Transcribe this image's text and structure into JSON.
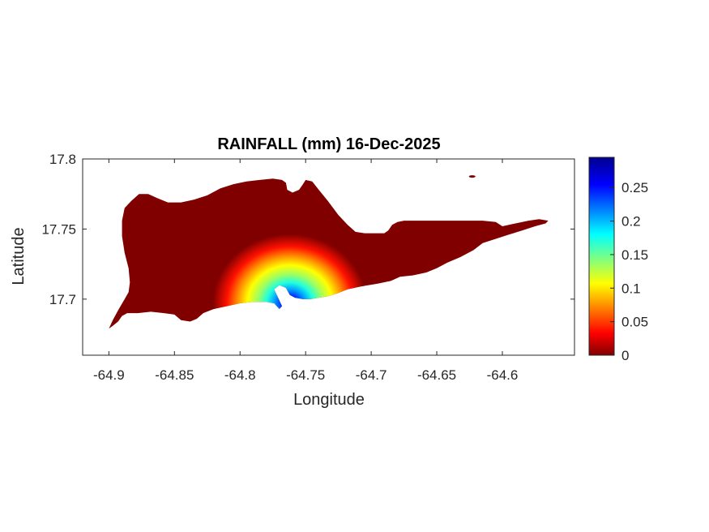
{
  "chart_data": {
    "type": "heatmap",
    "title": "RAINFALL (mm) 16-Dec-2025",
    "xlabel": "Longitude",
    "ylabel": "Latitude",
    "xlim": [
      -64.92,
      -64.545
    ],
    "ylim": [
      17.66,
      17.8
    ],
    "x_ticks": [
      -64.9,
      -64.85,
      -64.8,
      -64.75,
      -64.7,
      -64.65,
      -64.6
    ],
    "x_tick_labels": [
      "-64.9",
      "-64.85",
      "-64.8",
      "-64.75",
      "-64.7",
      "-64.65",
      "-64.6"
    ],
    "y_ticks": [
      17.7,
      17.75,
      17.8
    ],
    "y_tick_labels": [
      "17.7",
      "17.75",
      "17.8"
    ],
    "colormap": "jet",
    "colorbar": {
      "lim": [
        0,
        0.295
      ],
      "ticks": [
        0,
        0.05,
        0.1,
        0.15,
        0.2,
        0.25
      ],
      "tick_labels": [
        "0",
        "0.05",
        "0.1",
        "0.15",
        "0.2",
        "0.25"
      ]
    },
    "background_value": 0,
    "rain_max": {
      "lon": -64.762,
      "lat": 17.697,
      "value": 0.29
    },
    "land_outline": [
      [
        -64.9,
        17.679
      ],
      [
        -64.897,
        17.681
      ],
      [
        -64.893,
        17.684
      ],
      [
        -64.89,
        17.688
      ],
      [
        -64.886,
        17.69
      ],
      [
        -64.878,
        17.69
      ],
      [
        -64.868,
        17.691
      ],
      [
        -64.858,
        17.69
      ],
      [
        -64.85,
        17.689
      ],
      [
        -64.845,
        17.685
      ],
      [
        -64.838,
        17.684
      ],
      [
        -64.833,
        17.686
      ],
      [
        -64.828,
        17.69
      ],
      [
        -64.82,
        17.693
      ],
      [
        -64.81,
        17.695
      ],
      [
        -64.8,
        17.697
      ],
      [
        -64.79,
        17.698
      ],
      [
        -64.78,
        17.698
      ],
      [
        -64.774,
        17.697
      ],
      [
        -64.77,
        17.693
      ],
      [
        -64.768,
        17.695
      ],
      [
        -64.771,
        17.701
      ],
      [
        -64.774,
        17.707
      ],
      [
        -64.77,
        17.71
      ],
      [
        -64.765,
        17.708
      ],
      [
        -64.762,
        17.703
      ],
      [
        -64.758,
        17.701
      ],
      [
        -64.752,
        17.7
      ],
      [
        -64.746,
        17.7
      ],
      [
        -64.74,
        17.701
      ],
      [
        -64.733,
        17.702
      ],
      [
        -64.726,
        17.704
      ],
      [
        -64.718,
        17.707
      ],
      [
        -64.708,
        17.709
      ],
      [
        -64.695,
        17.711
      ],
      [
        -64.685,
        17.713
      ],
      [
        -64.678,
        17.716
      ],
      [
        -64.668,
        17.717
      ],
      [
        -64.658,
        17.719
      ],
      [
        -64.65,
        17.722
      ],
      [
        -64.642,
        17.726
      ],
      [
        -64.632,
        17.73
      ],
      [
        -64.622,
        17.735
      ],
      [
        -64.615,
        17.74
      ],
      [
        -64.605,
        17.743
      ],
      [
        -64.595,
        17.746
      ],
      [
        -64.585,
        17.749
      ],
      [
        -64.575,
        17.752
      ],
      [
        -64.567,
        17.754
      ],
      [
        -64.565,
        17.756
      ],
      [
        -64.572,
        17.757
      ],
      [
        -64.58,
        17.756
      ],
      [
        -64.59,
        17.754
      ],
      [
        -64.6,
        17.752
      ],
      [
        -64.605,
        17.755
      ],
      [
        -64.615,
        17.756
      ],
      [
        -64.625,
        17.756
      ],
      [
        -64.635,
        17.756
      ],
      [
        -64.645,
        17.756
      ],
      [
        -64.655,
        17.756
      ],
      [
        -64.665,
        17.756
      ],
      [
        -64.675,
        17.756
      ],
      [
        -64.68,
        17.755
      ],
      [
        -64.684,
        17.753
      ],
      [
        -64.687,
        17.749
      ],
      [
        -64.69,
        17.747
      ],
      [
        -64.697,
        17.747
      ],
      [
        -64.705,
        17.747
      ],
      [
        -64.712,
        17.748
      ],
      [
        -64.718,
        17.753
      ],
      [
        -64.725,
        17.76
      ],
      [
        -64.733,
        17.77
      ],
      [
        -64.74,
        17.778
      ],
      [
        -64.745,
        17.784
      ],
      [
        -64.75,
        17.785
      ],
      [
        -64.752,
        17.782
      ],
      [
        -64.755,
        17.778
      ],
      [
        -64.76,
        17.776
      ],
      [
        -64.764,
        17.778
      ],
      [
        -64.765,
        17.783
      ],
      [
        -64.768,
        17.785
      ],
      [
        -64.775,
        17.786
      ],
      [
        -64.785,
        17.785
      ],
      [
        -64.795,
        17.784
      ],
      [
        -64.805,
        17.782
      ],
      [
        -64.815,
        17.779
      ],
      [
        -64.825,
        17.774
      ],
      [
        -64.835,
        17.771
      ],
      [
        -64.845,
        17.769
      ],
      [
        -64.855,
        17.769
      ],
      [
        -64.863,
        17.772
      ],
      [
        -64.87,
        17.775
      ],
      [
        -64.877,
        17.775
      ],
      [
        -64.883,
        17.77
      ],
      [
        -64.888,
        17.765
      ],
      [
        -64.89,
        17.756
      ],
      [
        -64.89,
        17.745
      ],
      [
        -64.888,
        17.733
      ],
      [
        -64.885,
        17.722
      ],
      [
        -64.884,
        17.712
      ],
      [
        -64.885,
        17.705
      ],
      [
        -64.888,
        17.7
      ],
      [
        -64.893,
        17.692
      ],
      [
        -64.897,
        17.685
      ]
    ],
    "small_islet": [
      -64.623,
      17.7875
    ]
  }
}
